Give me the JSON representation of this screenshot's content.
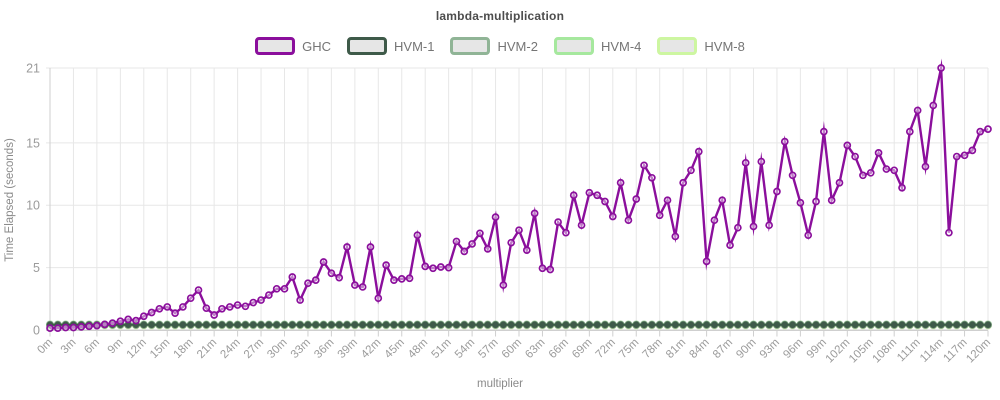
{
  "title": "lambda-multiplication",
  "chart_data": {
    "type": "line",
    "title": "lambda-multiplication",
    "xlabel": "multiplier",
    "ylabel": "Time Elapsed (seconds)",
    "grid": true,
    "legend_position": "top",
    "x_start": 0,
    "x_step": 1,
    "x_end": 120,
    "x_tick_every": 3,
    "x_tick_labels": [
      "0m",
      "3m",
      "6m",
      "9m",
      "12m",
      "15m",
      "18m",
      "21m",
      "24m",
      "27m",
      "30m",
      "33m",
      "36m",
      "39m",
      "42m",
      "45m",
      "48m",
      "51m",
      "54m",
      "57m",
      "60m",
      "63m",
      "66m",
      "69m",
      "72m",
      "75m",
      "78m",
      "81m",
      "84m",
      "87m",
      "90m",
      "93m",
      "96m",
      "99m",
      "102m",
      "105m",
      "108m",
      "111m",
      "114m",
      "117m",
      "120m"
    ],
    "y_ticks": [
      0,
      5,
      10,
      15,
      21
    ],
    "ylim": [
      0,
      21
    ],
    "series": [
      {
        "name": "GHC",
        "color": "#8b0f9c",
        "marker": "open-circle",
        "values": [
          0.15,
          0.15,
          0.2,
          0.2,
          0.25,
          0.3,
          0.35,
          0.45,
          0.55,
          0.7,
          0.85,
          0.75,
          1.1,
          1.4,
          1.7,
          1.85,
          1.35,
          1.85,
          2.55,
          3.2,
          1.75,
          1.2,
          1.7,
          1.85,
          2.0,
          1.9,
          2.2,
          2.4,
          2.8,
          3.3,
          3.3,
          4.25,
          2.4,
          3.75,
          4.0,
          5.45,
          4.55,
          4.2,
          6.65,
          3.6,
          3.45,
          6.65,
          2.55,
          5.2,
          4.0,
          4.1,
          4.15,
          7.6,
          5.1,
          4.95,
          5.05,
          5.0,
          7.1,
          6.3,
          6.9,
          7.75,
          6.5,
          9.05,
          3.6,
          7.0,
          8.0,
          6.4,
          9.35,
          4.95,
          4.85,
          8.65,
          7.8,
          10.8,
          8.4,
          11.0,
          10.8,
          10.3,
          9.1,
          11.8,
          8.8,
          10.5,
          13.2,
          12.2,
          9.2,
          10.4,
          7.5,
          11.8,
          12.8,
          14.3,
          5.5,
          8.8,
          10.4,
          6.8,
          8.2,
          13.4,
          8.3,
          13.5,
          8.4,
          11.1,
          15.1,
          12.4,
          10.2,
          7.6,
          10.3,
          15.9,
          10.4,
          11.8,
          14.8,
          13.9,
          12.4,
          12.6,
          14.2,
          12.9,
          12.8,
          11.4,
          15.9,
          17.6,
          13.1,
          18.0,
          21.0,
          7.8,
          13.9,
          14.0,
          14.4,
          15.9,
          16.1
        ]
      },
      {
        "name": "HVM-1",
        "color": "#3e5a49",
        "marker": "filled-circle",
        "constant_value": 0.42
      },
      {
        "name": "HVM-2",
        "color": "#90b496",
        "marker": "filled-circle",
        "constant_value": 0.4
      },
      {
        "name": "HVM-4",
        "color": "#a6e89e",
        "marker": "filled-circle",
        "constant_value": 0.46
      },
      {
        "name": "HVM-8",
        "color": "#cdf6a1",
        "marker": "filled-circle",
        "constant_value": 0.35
      }
    ]
  },
  "colors": {
    "grid": "#e7e7e7",
    "axis": "#cfcfcf",
    "tick_text": "#9b9b9b",
    "title_text": "#4d4d4d",
    "axis_title_text": "#8a8a8a",
    "legend_swatch_fill": "#e6e6e6"
  }
}
